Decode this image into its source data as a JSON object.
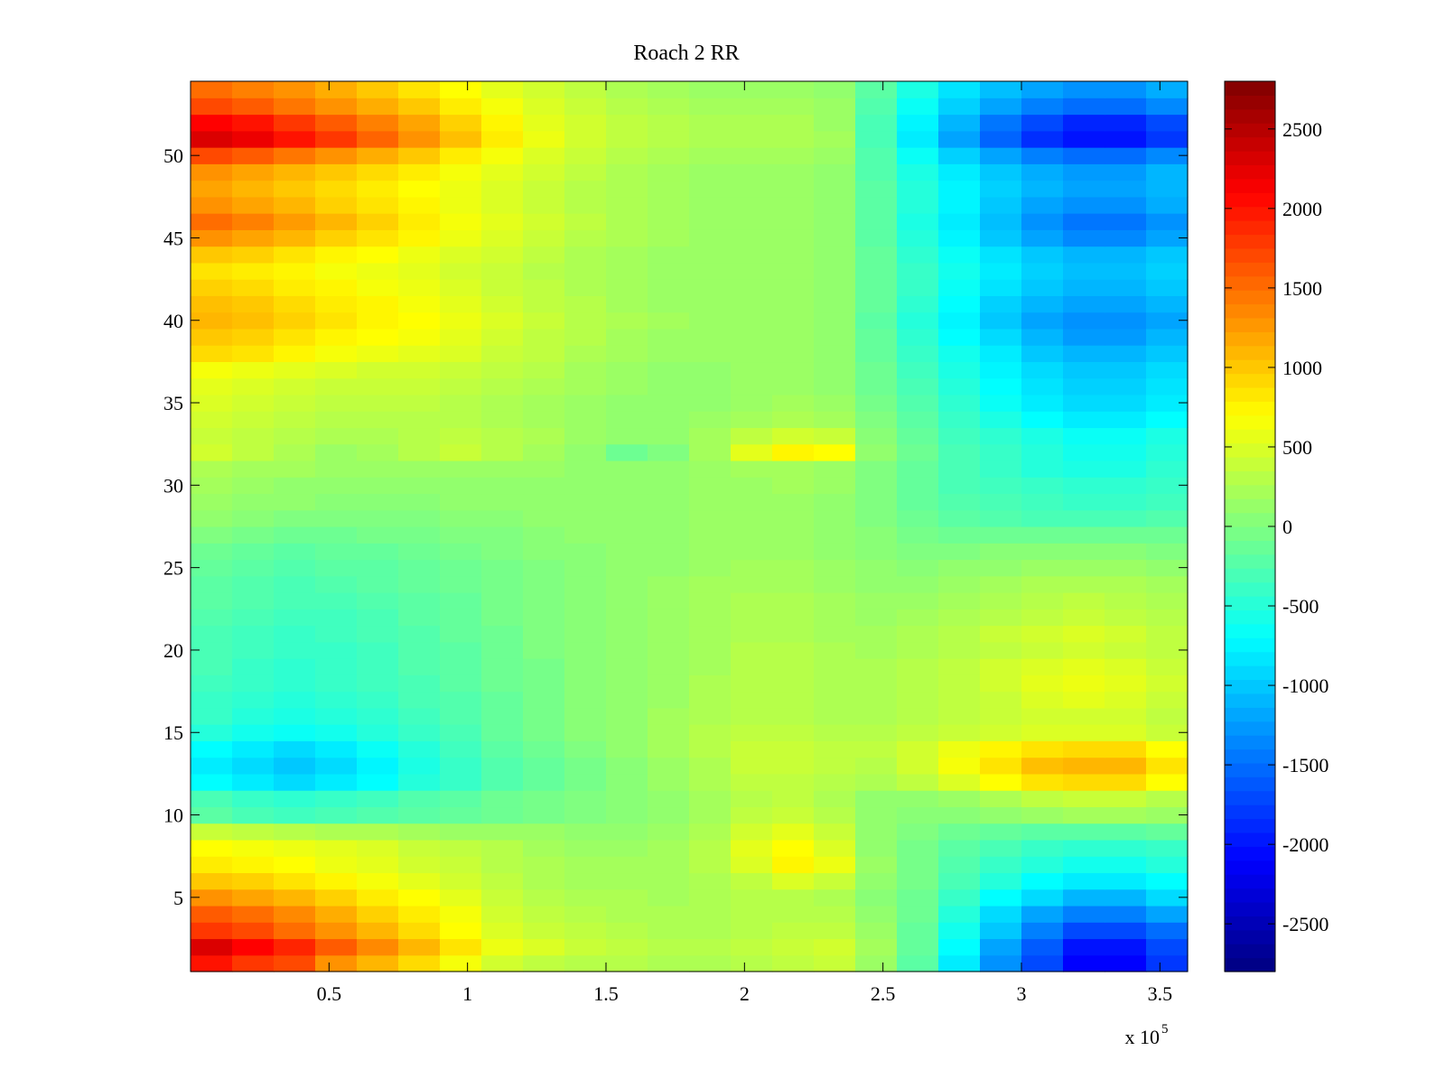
{
  "chart_data": {
    "type": "heatmap",
    "title": "Roach 2 RR",
    "xlabel": "",
    "ylabel": "",
    "x_multiplier_label": "x 10",
    "x_multiplier_exponent": "5",
    "xlim": [
      0,
      3.6
    ],
    "ylim": [
      0.5,
      54.5
    ],
    "x_ticks": [
      0.5,
      1,
      1.5,
      2,
      2.5,
      3,
      3.5
    ],
    "x_tick_labels": [
      "0.5",
      "1",
      "1.5",
      "2",
      "2.5",
      "3",
      "3.5"
    ],
    "y_ticks": [
      5,
      10,
      15,
      20,
      25,
      30,
      35,
      40,
      45,
      50
    ],
    "y_tick_labels": [
      "5",
      "10",
      "15",
      "20",
      "25",
      "30",
      "35",
      "40",
      "45",
      "50"
    ],
    "rows": 54,
    "columns": 24,
    "colormap": "jet",
    "clim": [
      -2800,
      2800
    ],
    "colorbar": {
      "ticks": [
        2500,
        2000,
        1500,
        1000,
        500,
        0,
        -500,
        -1000,
        -1500,
        -2000,
        -2500
      ],
      "tick_labels": [
        "2500",
        "2000",
        "1500",
        "1000",
        "500",
        "0",
        "-500",
        "-1000",
        "-1500",
        "-2000",
        "-2500"
      ]
    },
    "grid": false,
    "values": [
      [
        2000,
        1800,
        1700,
        1300,
        1100,
        900,
        650,
        450,
        350,
        300,
        300,
        250,
        250,
        300,
        350,
        400,
        150,
        -200,
        -800,
        -1300,
        -1700,
        -2100,
        -2100,
        -1800
      ],
      [
        2300,
        2100,
        1900,
        1600,
        1350,
        1100,
        850,
        600,
        500,
        400,
        350,
        300,
        300,
        350,
        400,
        450,
        200,
        -150,
        -700,
        -1200,
        -1600,
        -2000,
        -2000,
        -1700
      ],
      [
        1800,
        1700,
        1500,
        1300,
        1100,
        900,
        700,
        500,
        400,
        350,
        300,
        250,
        250,
        300,
        350,
        350,
        150,
        -150,
        -600,
        -1000,
        -1400,
        -1700,
        -1700,
        -1500
      ],
      [
        1600,
        1500,
        1350,
        1150,
        950,
        800,
        650,
        450,
        350,
        300,
        250,
        250,
        250,
        300,
        300,
        300,
        100,
        -100,
        -500,
        -900,
        -1200,
        -1400,
        -1400,
        -1200
      ],
      [
        1300,
        1200,
        1100,
        950,
        800,
        700,
        550,
        400,
        300,
        250,
        250,
        200,
        250,
        300,
        300,
        250,
        50,
        -100,
        -400,
        -700,
        -900,
        -1100,
        -1100,
        -900
      ],
      [
        1000,
        950,
        850,
        750,
        650,
        550,
        450,
        350,
        250,
        200,
        200,
        200,
        250,
        350,
        500,
        400,
        100,
        -50,
        -300,
        -500,
        -700,
        -800,
        -800,
        -700
      ],
      [
        800,
        750,
        700,
        600,
        550,
        450,
        400,
        300,
        250,
        200,
        200,
        200,
        300,
        500,
        750,
        600,
        150,
        -50,
        -250,
        -400,
        -500,
        -600,
        -600,
        -500
      ],
      [
        700,
        650,
        600,
        550,
        500,
        400,
        350,
        300,
        200,
        150,
        150,
        200,
        300,
        550,
        700,
        500,
        100,
        -50,
        -200,
        -300,
        -400,
        -450,
        -450,
        -400
      ],
      [
        400,
        350,
        300,
        250,
        250,
        200,
        150,
        150,
        150,
        100,
        100,
        150,
        250,
        450,
        550,
        400,
        100,
        0,
        -100,
        -150,
        -200,
        -200,
        -200,
        -150
      ],
      [
        -200,
        -300,
        -350,
        -300,
        -250,
        -200,
        -150,
        -100,
        -50,
        0,
        50,
        100,
        200,
        350,
        400,
        300,
        100,
        50,
        50,
        100,
        150,
        200,
        200,
        150
      ],
      [
        -300,
        -400,
        -450,
        -400,
        -350,
        -250,
        -200,
        -100,
        -50,
        0,
        50,
        100,
        200,
        300,
        350,
        250,
        100,
        100,
        150,
        250,
        350,
        400,
        400,
        300
      ],
      [
        -700,
        -800,
        -900,
        -800,
        -700,
        -500,
        -400,
        -250,
        -150,
        -50,
        50,
        150,
        250,
        350,
        350,
        300,
        250,
        350,
        500,
        700,
        850,
        900,
        900,
        700
      ],
      [
        -800,
        -900,
        -1000,
        -900,
        -750,
        -550,
        -400,
        -250,
        -150,
        -50,
        50,
        150,
        250,
        400,
        400,
        350,
        300,
        450,
        650,
        850,
        1050,
        1100,
        1100,
        850
      ],
      [
        -700,
        -800,
        -900,
        -800,
        -650,
        -500,
        -350,
        -200,
        -100,
        0,
        100,
        200,
        300,
        400,
        400,
        350,
        350,
        450,
        600,
        750,
        850,
        900,
        900,
        700
      ],
      [
        -500,
        -600,
        -650,
        -600,
        -500,
        -400,
        -300,
        -150,
        -50,
        50,
        100,
        200,
        300,
        350,
        350,
        300,
        300,
        350,
        400,
        450,
        500,
        500,
        500,
        400
      ],
      [
        -400,
        -500,
        -550,
        -500,
        -450,
        -350,
        -250,
        -150,
        -50,
        50,
        100,
        200,
        250,
        300,
        300,
        250,
        250,
        300,
        350,
        400,
        450,
        450,
        450,
        350
      ],
      [
        -400,
        -450,
        -500,
        -450,
        -400,
        -300,
        -250,
        -150,
        -50,
        50,
        100,
        150,
        250,
        300,
        300,
        250,
        250,
        300,
        350,
        400,
        500,
        550,
        500,
        400
      ],
      [
        -350,
        -400,
        -450,
        -400,
        -350,
        -300,
        -200,
        -100,
        -50,
        50,
        100,
        150,
        250,
        300,
        300,
        250,
        250,
        300,
        350,
        450,
        550,
        600,
        550,
        450
      ],
      [
        -300,
        -400,
        -450,
        -400,
        -350,
        -250,
        -200,
        -100,
        -50,
        50,
        100,
        150,
        200,
        300,
        300,
        250,
        250,
        300,
        350,
        450,
        500,
        550,
        500,
        400
      ],
      [
        -300,
        -350,
        -400,
        -400,
        -350,
        -250,
        -200,
        -100,
        0,
        50,
        100,
        150,
        200,
        300,
        300,
        250,
        200,
        250,
        300,
        350,
        400,
        450,
        400,
        350
      ],
      [
        -300,
        -350,
        -400,
        -350,
        -300,
        -250,
        -150,
        -100,
        0,
        50,
        100,
        150,
        200,
        250,
        250,
        200,
        200,
        250,
        300,
        400,
        450,
        500,
        450,
        350
      ],
      [
        -250,
        -300,
        -350,
        -350,
        -300,
        -200,
        -150,
        -50,
        0,
        50,
        100,
        150,
        200,
        250,
        250,
        200,
        150,
        200,
        250,
        300,
        350,
        400,
        350,
        300
      ],
      [
        -200,
        -250,
        -300,
        -300,
        -250,
        -200,
        -150,
        -50,
        0,
        50,
        100,
        150,
        200,
        250,
        250,
        200,
        150,
        150,
        200,
        250,
        300,
        350,
        300,
        250
      ],
      [
        -200,
        -250,
        -300,
        -250,
        -200,
        -150,
        -100,
        -50,
        0,
        50,
        100,
        150,
        200,
        200,
        200,
        150,
        100,
        100,
        150,
        200,
        250,
        250,
        250,
        200
      ],
      [
        -150,
        -200,
        -250,
        -200,
        -200,
        -150,
        -100,
        -50,
        0,
        50,
        100,
        100,
        150,
        200,
        200,
        150,
        100,
        50,
        100,
        100,
        150,
        150,
        150,
        100
      ],
      [
        -100,
        -150,
        -200,
        -150,
        -150,
        -100,
        -50,
        0,
        50,
        50,
        100,
        100,
        150,
        150,
        150,
        100,
        50,
        0,
        0,
        50,
        50,
        50,
        50,
        0
      ],
      [
        0,
        -50,
        -100,
        -100,
        -50,
        -50,
        0,
        0,
        50,
        100,
        100,
        100,
        150,
        150,
        150,
        100,
        50,
        -50,
        -100,
        -100,
        -100,
        -100,
        -100,
        -100
      ],
      [
        100,
        50,
        0,
        0,
        0,
        0,
        50,
        50,
        100,
        100,
        100,
        100,
        150,
        150,
        150,
        100,
        0,
        -100,
        -200,
        -250,
        -300,
        -300,
        -300,
        -250
      ],
      [
        150,
        100,
        100,
        50,
        50,
        50,
        100,
        100,
        100,
        100,
        100,
        100,
        150,
        150,
        150,
        100,
        0,
        -150,
        -250,
        -300,
        -350,
        -400,
        -400,
        -350
      ],
      [
        200,
        150,
        100,
        100,
        100,
        100,
        100,
        100,
        100,
        100,
        100,
        100,
        150,
        150,
        200,
        150,
        0,
        -150,
        -300,
        -350,
        -400,
        -450,
        -450,
        -400
      ],
      [
        250,
        200,
        200,
        150,
        150,
        150,
        150,
        150,
        150,
        100,
        100,
        100,
        150,
        200,
        200,
        150,
        0,
        -150,
        -300,
        -400,
        -500,
        -550,
        -550,
        -450
      ],
      [
        450,
        350,
        250,
        150,
        200,
        300,
        400,
        300,
        200,
        100,
        -100,
        0,
        200,
        550,
        750,
        700,
        100,
        -100,
        -300,
        -400,
        -500,
        -600,
        -600,
        -500
      ],
      [
        400,
        350,
        300,
        250,
        250,
        300,
        350,
        300,
        250,
        150,
        100,
        100,
        200,
        350,
        450,
        400,
        50,
        -150,
        -350,
        -450,
        -550,
        -650,
        -650,
        -550
      ],
      [
        450,
        400,
        350,
        300,
        300,
        300,
        300,
        250,
        200,
        150,
        100,
        100,
        150,
        200,
        250,
        200,
        0,
        -200,
        -400,
        -550,
        -700,
        -800,
        -800,
        -700
      ],
      [
        500,
        450,
        400,
        350,
        350,
        350,
        300,
        250,
        200,
        150,
        100,
        100,
        100,
        150,
        200,
        150,
        -50,
        -250,
        -450,
        -650,
        -800,
        -900,
        -900,
        -800
      ],
      [
        550,
        500,
        450,
        400,
        400,
        400,
        350,
        300,
        250,
        200,
        150,
        100,
        100,
        150,
        150,
        100,
        -100,
        -300,
        -500,
        -700,
        -850,
        -950,
        -950,
        -850
      ],
      [
        650,
        600,
        550,
        500,
        450,
        450,
        400,
        350,
        300,
        200,
        150,
        100,
        100,
        150,
        150,
        100,
        -100,
        -350,
        -550,
        -750,
        -900,
        -1000,
        -1000,
        -900
      ],
      [
        900,
        850,
        750,
        650,
        600,
        550,
        500,
        400,
        350,
        250,
        200,
        150,
        150,
        150,
        150,
        100,
        -150,
        -400,
        -600,
        -800,
        -1000,
        -1100,
        -1100,
        -1000
      ],
      [
        1000,
        950,
        850,
        750,
        700,
        650,
        550,
        450,
        350,
        300,
        200,
        150,
        150,
        150,
        150,
        100,
        -150,
        -450,
        -700,
        -900,
        -1100,
        -1250,
        -1250,
        -1100
      ],
      [
        1100,
        1050,
        950,
        850,
        750,
        700,
        600,
        500,
        400,
        300,
        250,
        200,
        150,
        150,
        150,
        100,
        -200,
        -500,
        -750,
        -1000,
        -1200,
        -1300,
        -1300,
        -1200
      ],
      [
        1050,
        1000,
        900,
        800,
        750,
        650,
        550,
        450,
        350,
        300,
        200,
        150,
        150,
        150,
        150,
        100,
        -150,
        -450,
        -700,
        -950,
        -1100,
        -1200,
        -1200,
        -1100
      ],
      [
        950,
        900,
        800,
        750,
        650,
        600,
        500,
        400,
        350,
        250,
        200,
        150,
        150,
        150,
        150,
        100,
        -150,
        -400,
        -650,
        -850,
        -1000,
        -1100,
        -1100,
        -1000
      ],
      [
        850,
        800,
        750,
        650,
        600,
        550,
        450,
        400,
        300,
        250,
        200,
        150,
        150,
        150,
        150,
        100,
        -150,
        -400,
        -600,
        -800,
        -950,
        -1050,
        -1050,
        -950
      ],
      [
        1000,
        950,
        850,
        750,
        700,
        600,
        500,
        450,
        350,
        250,
        200,
        150,
        150,
        150,
        150,
        100,
        -150,
        -450,
        -650,
        -850,
        -1000,
        -1100,
        -1100,
        -1000
      ],
      [
        1300,
        1200,
        1100,
        950,
        850,
        750,
        600,
        500,
        400,
        300,
        250,
        200,
        150,
        150,
        150,
        100,
        -200,
        -500,
        -750,
        -1000,
        -1200,
        -1350,
        -1350,
        -1200
      ],
      [
        1500,
        1400,
        1250,
        1100,
        950,
        800,
        650,
        550,
        450,
        350,
        250,
        200,
        150,
        150,
        150,
        100,
        -200,
        -550,
        -800,
        -1050,
        -1300,
        -1450,
        -1450,
        -1300
      ],
      [
        1300,
        1200,
        1100,
        950,
        850,
        750,
        600,
        500,
        400,
        300,
        250,
        200,
        150,
        150,
        150,
        100,
        -200,
        -500,
        -750,
        -1000,
        -1200,
        -1300,
        -1300,
        -1150
      ],
      [
        1200,
        1100,
        1000,
        900,
        800,
        700,
        600,
        500,
        400,
        300,
        250,
        200,
        150,
        150,
        150,
        100,
        -200,
        -500,
        -750,
        -950,
        -1100,
        -1200,
        -1200,
        -1100
      ],
      [
        1300,
        1200,
        1100,
        1000,
        900,
        800,
        650,
        550,
        450,
        350,
        250,
        200,
        150,
        150,
        150,
        100,
        -250,
        -550,
        -800,
        -1000,
        -1150,
        -1250,
        -1250,
        -1100
      ],
      [
        1700,
        1600,
        1450,
        1300,
        1150,
        1000,
        800,
        650,
        500,
        400,
        300,
        250,
        200,
        200,
        200,
        150,
        -250,
        -650,
        -950,
        -1200,
        -1400,
        -1500,
        -1500,
        -1350
      ],
      [
        2300,
        2200,
        2000,
        1800,
        1550,
        1300,
        1050,
        800,
        600,
        450,
        350,
        300,
        250,
        250,
        250,
        200,
        -300,
        -800,
        -1200,
        -1550,
        -1850,
        -2000,
        -2000,
        -1800
      ],
      [
        2100,
        2000,
        1800,
        1600,
        1400,
        1200,
        950,
        750,
        550,
        450,
        350,
        300,
        250,
        250,
        250,
        150,
        -300,
        -750,
        -1100,
        -1450,
        -1700,
        -1900,
        -1900,
        -1700
      ],
      [
        1700,
        1600,
        1450,
        1300,
        1150,
        1000,
        800,
        650,
        500,
        400,
        300,
        250,
        200,
        200,
        200,
        150,
        -250,
        -650,
        -950,
        -1200,
        -1400,
        -1500,
        -1500,
        -1350
      ],
      [
        1500,
        1400,
        1300,
        1150,
        1000,
        850,
        700,
        550,
        450,
        350,
        250,
        200,
        150,
        150,
        150,
        100,
        -200,
        -550,
        -850,
        -1050,
        -1200,
        -1300,
        -1300,
        -1150
      ]
    ]
  }
}
